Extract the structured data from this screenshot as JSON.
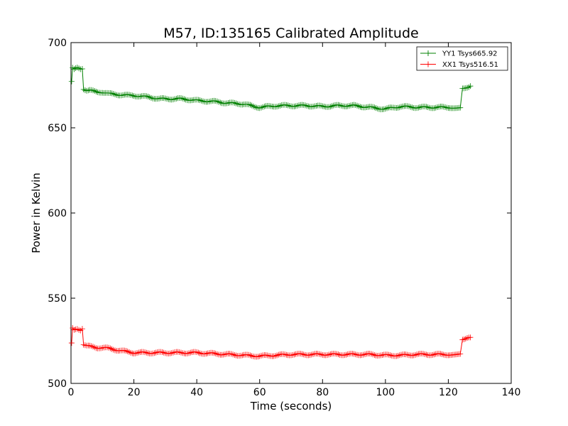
{
  "chart_data": {
    "type": "line",
    "title": "M57, ID:135165 Calibrated Amplitude",
    "xlabel": "Time (seconds)",
    "ylabel": "Power in Kelvin",
    "xlim": [
      0,
      140
    ],
    "ylim": [
      500,
      700
    ],
    "xticks": [
      "0",
      "20",
      "40",
      "60",
      "80",
      "100",
      "120",
      "140"
    ],
    "yticks": [
      "500",
      "550",
      "600",
      "650",
      "700"
    ],
    "grid": false,
    "legend_position": "top-right",
    "series": [
      {
        "name": "YY1 Tsys665.92",
        "color": "#008000",
        "marker": "plus",
        "points": [
          [
            0.2,
            677
          ],
          [
            0.5,
            685
          ],
          [
            1,
            684
          ],
          [
            2,
            685
          ],
          [
            3,
            684.5
          ],
          [
            3.6,
            685
          ],
          [
            4,
            673
          ],
          [
            5,
            672
          ],
          [
            6,
            672
          ],
          [
            8,
            671
          ],
          [
            10,
            671
          ],
          [
            12,
            670
          ],
          [
            15,
            669.5
          ],
          [
            18,
            669
          ],
          [
            20,
            669
          ],
          [
            22,
            668.5
          ],
          [
            25,
            668
          ],
          [
            28,
            667
          ],
          [
            30,
            667
          ],
          [
            35,
            667
          ],
          [
            38,
            666.5
          ],
          [
            40,
            666
          ],
          [
            45,
            665.5
          ],
          [
            50,
            664.5
          ],
          [
            55,
            664
          ],
          [
            58,
            662.5
          ],
          [
            60,
            662
          ],
          [
            63,
            662.5
          ],
          [
            66,
            663
          ],
          [
            70,
            663
          ],
          [
            75,
            663
          ],
          [
            80,
            662.5
          ],
          [
            85,
            663
          ],
          [
            90,
            663
          ],
          [
            95,
            662
          ],
          [
            100,
            661
          ],
          [
            103,
            662
          ],
          [
            105,
            662.5
          ],
          [
            110,
            662
          ],
          [
            115,
            662
          ],
          [
            120,
            662
          ],
          [
            123.8,
            662
          ],
          [
            124.5,
            673
          ],
          [
            126,
            674
          ],
          [
            127,
            674.5
          ]
        ]
      },
      {
        "name": "XX1 Tsys516.51",
        "color": "#ff0000",
        "marker": "plus",
        "points": [
          [
            0.2,
            524
          ],
          [
            0.5,
            532
          ],
          [
            1,
            531
          ],
          [
            2,
            532
          ],
          [
            3,
            531.5
          ],
          [
            3.6,
            532
          ],
          [
            4,
            523
          ],
          [
            5,
            522
          ],
          [
            8,
            521
          ],
          [
            10,
            521
          ],
          [
            12,
            520.5
          ],
          [
            15,
            519.5
          ],
          [
            18,
            518.5
          ],
          [
            20,
            518
          ],
          [
            25,
            518
          ],
          [
            30,
            518
          ],
          [
            35,
            518
          ],
          [
            40,
            518
          ],
          [
            45,
            517.5
          ],
          [
            50,
            517
          ],
          [
            55,
            516.5
          ],
          [
            60,
            516
          ],
          [
            65,
            516.5
          ],
          [
            70,
            517
          ],
          [
            75,
            517
          ],
          [
            80,
            517
          ],
          [
            85,
            517
          ],
          [
            90,
            517
          ],
          [
            95,
            517
          ],
          [
            100,
            516.5
          ],
          [
            105,
            516.5
          ],
          [
            110,
            517
          ],
          [
            115,
            517
          ],
          [
            120,
            517
          ],
          [
            123.8,
            517
          ],
          [
            124.5,
            526
          ],
          [
            126,
            527
          ],
          [
            127,
            527
          ]
        ]
      }
    ]
  }
}
